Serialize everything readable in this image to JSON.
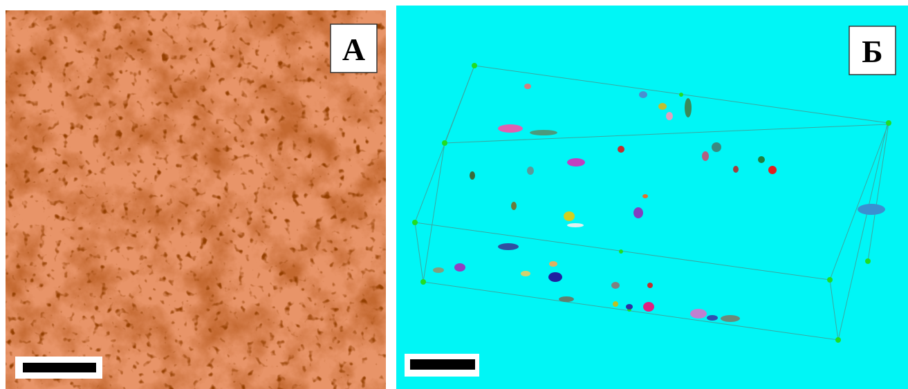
{
  "panels": [
    {
      "label": "А"
    },
    {
      "label": "Б"
    }
  ]
}
